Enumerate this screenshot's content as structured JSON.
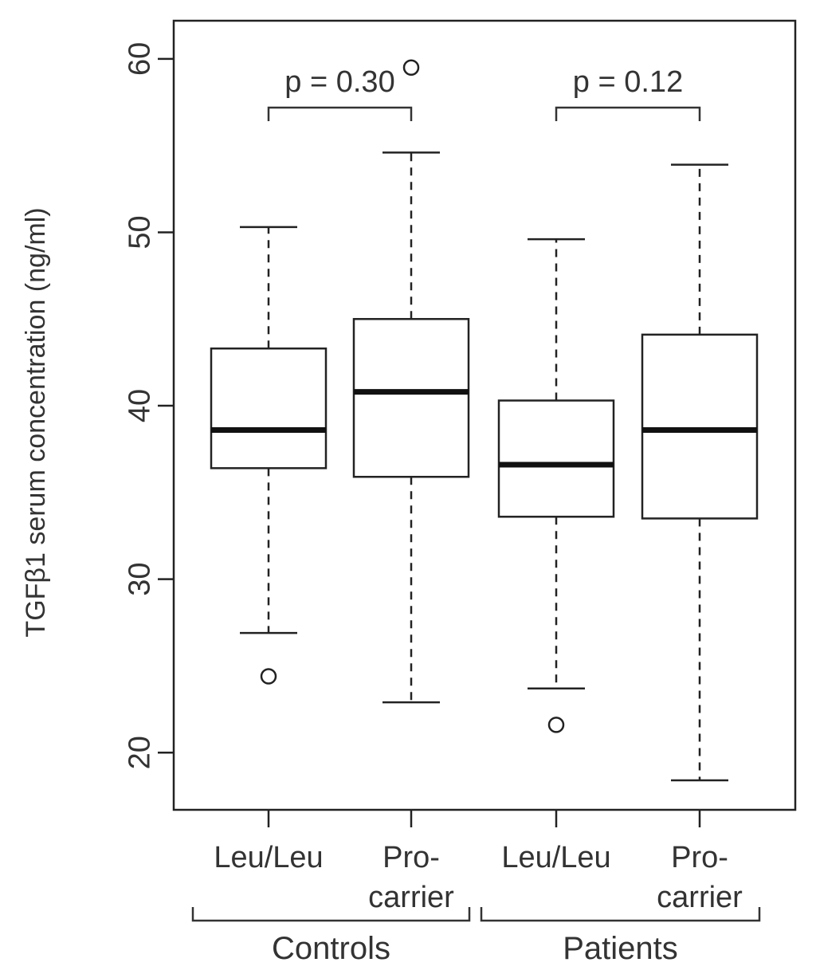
{
  "chart_data": {
    "type": "box",
    "ylabel": "TGFβ1 serum concentration (ng/ml)",
    "xlabel": "",
    "title": "",
    "ylim": [
      16.7,
      62.2
    ],
    "yticks": [
      20,
      30,
      40,
      50,
      60
    ],
    "categories": [
      {
        "label_lines": [
          "Leu/Leu"
        ],
        "group": "Controls"
      },
      {
        "label_lines": [
          "Pro-",
          "carrier"
        ],
        "group": "Controls"
      },
      {
        "label_lines": [
          "Leu/Leu"
        ],
        "group": "Patients"
      },
      {
        "label_lines": [
          "Pro-",
          "carrier"
        ],
        "group": "Patients"
      }
    ],
    "groups": [
      "Controls",
      "Patients"
    ],
    "boxes": [
      {
        "whisker_low": 26.9,
        "q1": 36.4,
        "median": 38.6,
        "q3": 43.3,
        "whisker_high": 50.3,
        "outliers": [
          24.4
        ]
      },
      {
        "whisker_low": 22.9,
        "q1": 35.9,
        "median": 40.8,
        "q3": 45.0,
        "whisker_high": 54.6,
        "outliers": [
          59.5
        ]
      },
      {
        "whisker_low": 23.7,
        "q1": 33.6,
        "median": 36.6,
        "q3": 40.3,
        "whisker_high": 49.6,
        "outliers": [
          21.6
        ]
      },
      {
        "whisker_low": 18.4,
        "q1": 33.5,
        "median": 38.6,
        "q3": 44.1,
        "whisker_high": 53.9,
        "outliers": []
      }
    ],
    "comparisons": [
      {
        "from": 0,
        "to": 1,
        "label": "p = 0.30"
      },
      {
        "from": 2,
        "to": 3,
        "label": "p = 0.12"
      }
    ]
  }
}
